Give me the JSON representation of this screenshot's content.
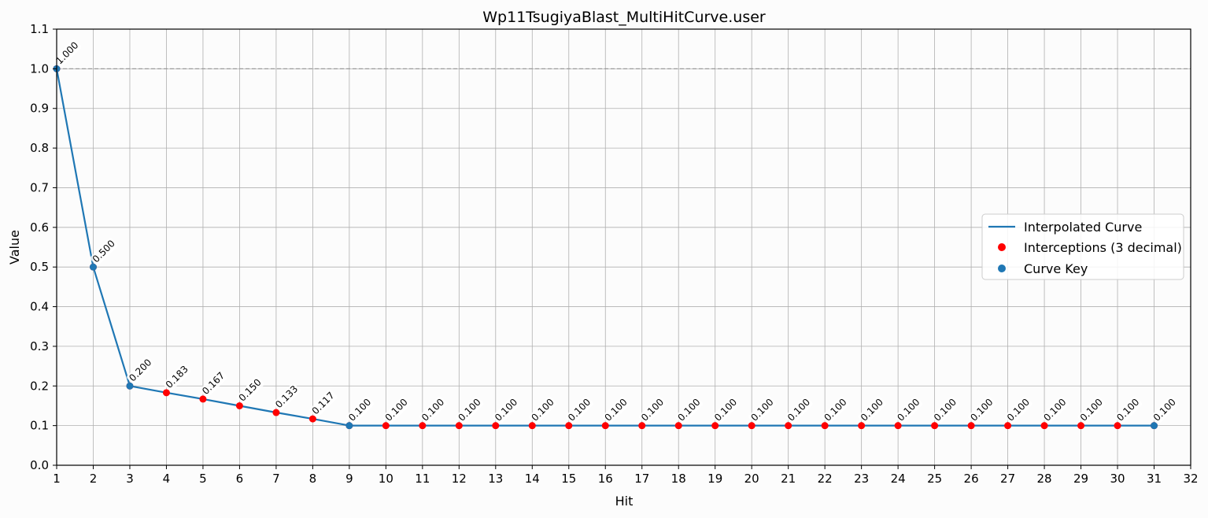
{
  "chart_data": {
    "type": "line",
    "title": "Wp11TsugiyaBlast_MultiHitCurve.user",
    "xlabel": "Hit",
    "ylabel": "Value",
    "xlim": [
      1,
      32
    ],
    "ylim": [
      0.0,
      1.1
    ],
    "xticks": [
      1,
      2,
      3,
      4,
      5,
      6,
      7,
      8,
      9,
      10,
      11,
      12,
      13,
      14,
      15,
      16,
      17,
      18,
      19,
      20,
      21,
      22,
      23,
      24,
      25,
      26,
      27,
      28,
      29,
      30,
      31,
      32
    ],
    "yticks": [
      "0.0",
      "0.1",
      "0.2",
      "0.3",
      "0.4",
      "0.5",
      "0.6",
      "0.7",
      "0.8",
      "0.9",
      "1.0",
      "1.1"
    ],
    "grid": true,
    "reference_line": {
      "y": 1.0,
      "style": "dashed",
      "color": "#999999"
    },
    "legend_position": "center-right",
    "colors": {
      "curve": "#1f77b4",
      "interceptions": "#ff0000",
      "keys": "#1f77b4"
    },
    "series": [
      {
        "name": "Interpolated Curve",
        "kind": "line",
        "x": [
          1,
          2,
          3,
          4,
          5,
          6,
          7,
          8,
          9,
          10,
          11,
          12,
          13,
          14,
          15,
          16,
          17,
          18,
          19,
          20,
          21,
          22,
          23,
          24,
          25,
          26,
          27,
          28,
          29,
          30,
          31
        ],
        "y": [
          1.0,
          0.5,
          0.2,
          0.183,
          0.167,
          0.15,
          0.133,
          0.117,
          0.1,
          0.1,
          0.1,
          0.1,
          0.1,
          0.1,
          0.1,
          0.1,
          0.1,
          0.1,
          0.1,
          0.1,
          0.1,
          0.1,
          0.1,
          0.1,
          0.1,
          0.1,
          0.1,
          0.1,
          0.1,
          0.1,
          0.1
        ]
      },
      {
        "name": "Interceptions (3 decimal)",
        "kind": "scatter",
        "x": [
          1,
          2,
          3,
          4,
          5,
          6,
          7,
          8,
          9,
          10,
          11,
          12,
          13,
          14,
          15,
          16,
          17,
          18,
          19,
          20,
          21,
          22,
          23,
          24,
          25,
          26,
          27,
          28,
          29,
          30,
          31
        ],
        "y": [
          1.0,
          0.5,
          0.2,
          0.183,
          0.167,
          0.15,
          0.133,
          0.117,
          0.1,
          0.1,
          0.1,
          0.1,
          0.1,
          0.1,
          0.1,
          0.1,
          0.1,
          0.1,
          0.1,
          0.1,
          0.1,
          0.1,
          0.1,
          0.1,
          0.1,
          0.1,
          0.1,
          0.1,
          0.1,
          0.1,
          0.1
        ]
      },
      {
        "name": "Curve Key",
        "kind": "scatter",
        "x": [
          1,
          2,
          3,
          9,
          31
        ],
        "y": [
          1.0,
          0.5,
          0.2,
          0.1,
          0.1
        ]
      }
    ],
    "data_labels": [
      "1.000",
      "0.500",
      "0.200",
      "0.183",
      "0.167",
      "0.150",
      "0.133",
      "0.117",
      "0.100",
      "0.100",
      "0.100",
      "0.100",
      "0.100",
      "0.100",
      "0.100",
      "0.100",
      "0.100",
      "0.100",
      "0.100",
      "0.100",
      "0.100",
      "0.100",
      "0.100",
      "0.100",
      "0.100",
      "0.100",
      "0.100",
      "0.100",
      "0.100",
      "0.100",
      "0.100"
    ]
  }
}
